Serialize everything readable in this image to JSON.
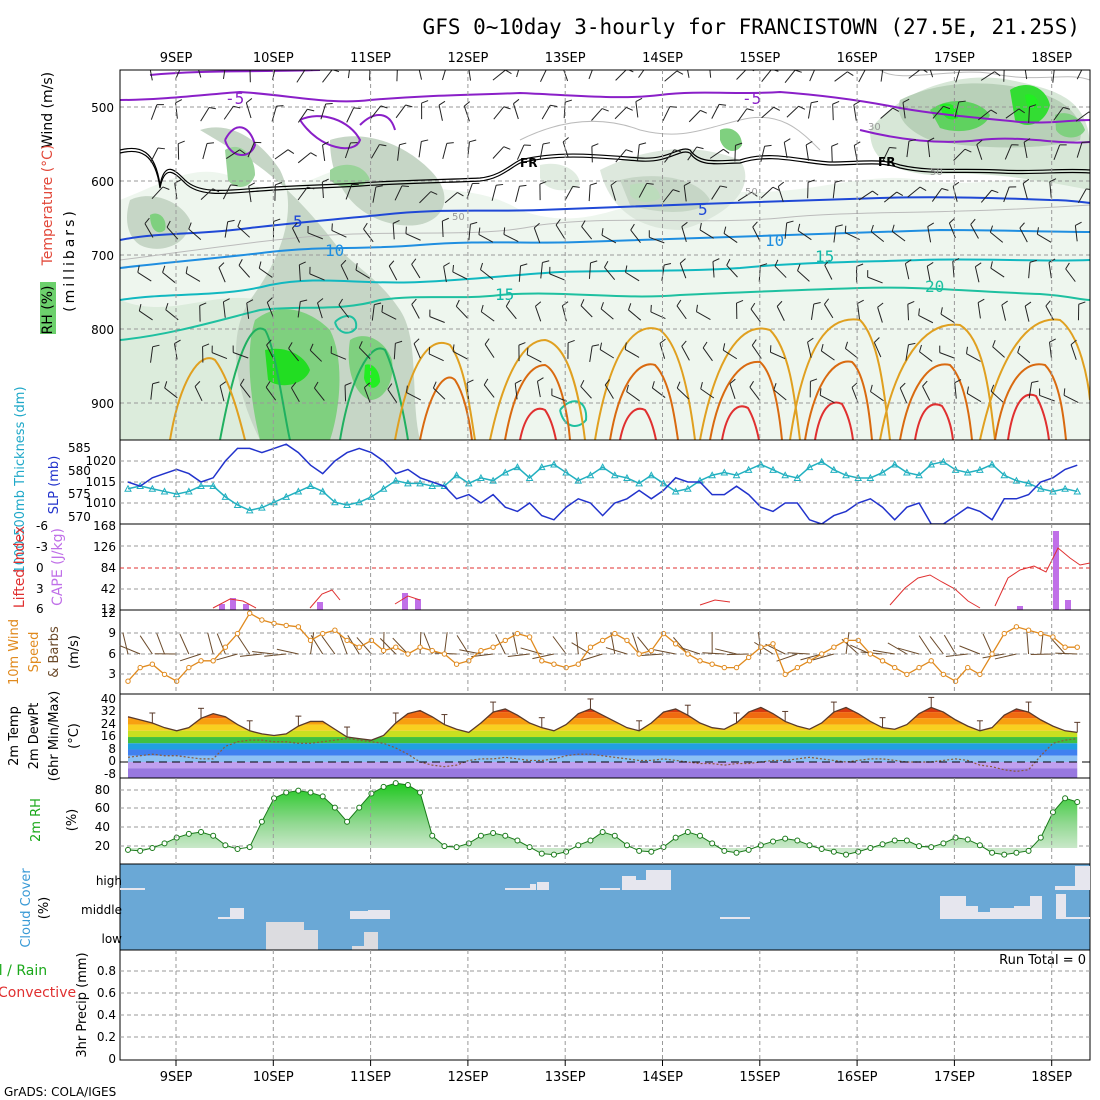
{
  "title": "GFS 0~10day 3-hourly for FRANCISTOWN (27.5E, 21.25S)",
  "credit": "GrADS: COLA/IGES",
  "dates": [
    "9SEP",
    "10SEP",
    "11SEP",
    "12SEP",
    "13SEP",
    "14SEP",
    "15SEP",
    "16SEP",
    "17SEP",
    "18SEP"
  ],
  "panels": {
    "upper": {
      "ylabel_pressure": "(millibars)",
      "ylabel_wind": "Wind (m/s)",
      "ylabel_temp": "Temperature (°C)",
      "ylabel_rh": "RH (%)",
      "pressure_ticks": [
        "500",
        "600",
        "700",
        "800",
        "900"
      ],
      "freezing_label": "FR",
      "contour_labels": [
        "-5",
        "-5",
        "5",
        "5",
        "10",
        "10",
        "15",
        "15",
        "20",
        "30",
        "50",
        "50",
        "50"
      ]
    },
    "pressure": {
      "ylabel_thick": "1000-500mb Thickness (dm)",
      "ylabel_slp": "SLP (mb)",
      "thick_ticks": [
        "585",
        "580",
        "575",
        "570"
      ],
      "slp_ticks": [
        "1020",
        "1015",
        "1010"
      ]
    },
    "cape": {
      "ylabel_li": "Lifted Index",
      "ylabel_cape": "CAPE (J/kg)",
      "li_ticks": [
        "-6",
        "-3",
        "0",
        "3",
        "6"
      ],
      "cape_ticks": [
        "168",
        "126",
        "84",
        "42",
        "12"
      ]
    },
    "wind10": {
      "ylabel_a": "10m Wind",
      "ylabel_b": "Speed",
      "ylabel_c": "& Barbs",
      "ylabel_d": "(m/s)",
      "ticks": [
        "12",
        "9",
        "6",
        "3"
      ]
    },
    "temp": {
      "ylabel_a": "2m Temp",
      "ylabel_b": "2m DewPt",
      "ylabel_c": "(6hr Min/Max)",
      "ylabel_d": "(°C)",
      "ticks": [
        "40",
        "32",
        "24",
        "16",
        "8",
        "0",
        "-8"
      ]
    },
    "rh": {
      "ylabel_a": "2m RH",
      "ylabel_b": "(%)",
      "ticks": [
        "80",
        "60",
        "40",
        "20"
      ]
    },
    "cloud": {
      "ylabel_a": "Cloud Cover",
      "ylabel_b": "(%)",
      "levels": [
        "high",
        "middle",
        "low"
      ]
    },
    "precip": {
      "ylabel_a": "Total / Rain",
      "ylabel_b": "Convective",
      "ylabel_c": "3hr Precip (mm)",
      "ticks": [
        "0.8",
        "0.6",
        "0.4",
        "0.2",
        "0"
      ],
      "run_total": "Run Total = 0"
    }
  },
  "chart_data": [
    {
      "type": "line",
      "name": "SLP and 1000-500mb thickness",
      "x_unit": "3-hourly steps (0 = 8SEP 12Z)",
      "ylabel": "SLP (mb)",
      "series": [
        {
          "name": "SLP",
          "color": "#2233cc",
          "values": [
            1015,
            1014,
            1016,
            1017,
            1018,
            1017,
            1015,
            1016,
            1020,
            1023,
            1023,
            1022,
            1023,
            1024,
            1022,
            1019,
            1017,
            1020,
            1022,
            1023,
            1022,
            1020,
            1017,
            1018,
            1016,
            1015,
            1014,
            1011,
            1012,
            1010,
            1012,
            1009,
            1008,
            1010,
            1007,
            1006,
            1009,
            1011,
            1010,
            1007,
            1010,
            1011,
            1013,
            1011,
            1013,
            1016,
            1015,
            1015,
            1012,
            1012,
            1014,
            1012,
            1009,
            1008,
            1010,
            1010,
            1006,
            1005,
            1007,
            1008,
            1010,
            1011,
            1009,
            1006,
            1009,
            1010,
            1005,
            1005,
            1007,
            1009,
            1008,
            1006,
            1011,
            1011,
            1012,
            1015,
            1016,
            1018,
            1019
          ]
        },
        {
          "name": "Thickness",
          "color": "#22b0c0",
          "values": [
            575,
            576,
            575,
            574,
            573,
            574,
            576,
            576,
            572,
            569,
            567,
            568,
            570,
            572,
            574,
            576,
            574,
            570,
            569,
            570,
            572,
            575,
            578,
            577,
            577,
            576,
            576,
            580,
            577,
            579,
            578,
            581,
            583,
            579,
            583,
            584,
            581,
            578,
            580,
            583,
            580,
            579,
            577,
            580,
            577,
            574,
            575,
            578,
            580,
            581,
            580,
            582,
            584,
            582,
            580,
            579,
            583,
            585,
            582,
            580,
            579,
            579,
            581,
            584,
            581,
            580,
            584,
            585,
            582,
            581,
            582,
            584,
            580,
            578,
            577,
            575,
            574,
            575,
            574
          ]
        }
      ]
    },
    {
      "type": "line",
      "name": "10m wind speed",
      "ylabel": "(m/s)",
      "series": [
        {
          "name": "Speed",
          "color": "#e08a1e",
          "values": [
            1,
            3,
            3.5,
            2,
            1,
            3,
            4,
            4,
            6,
            8,
            11,
            10,
            9.5,
            9.2,
            9,
            7,
            8,
            8.5,
            7,
            6,
            7,
            5.5,
            6,
            5,
            6,
            5.5,
            5,
            3.5,
            4,
            5.5,
            6,
            7,
            8,
            7.5,
            4,
            3.5,
            3,
            3.5,
            6,
            7,
            8,
            7,
            5,
            5.5,
            8,
            6.5,
            5,
            4,
            3.5,
            3,
            3,
            4.5,
            6,
            6.5,
            2,
            3,
            4,
            5,
            6,
            7,
            7,
            5,
            4,
            3,
            2,
            3,
            4,
            2,
            1,
            3,
            2,
            5,
            8,
            9,
            8.5,
            8,
            7.5,
            6,
            6
          ]
        }
      ]
    },
    {
      "type": "area",
      "name": "2m temperature / dewpoint",
      "ylabel": "(°C)",
      "ylim": [
        -12,
        42
      ],
      "series": [
        {
          "name": "2m Temp",
          "values": [
            29,
            27,
            25,
            22,
            20,
            22,
            28,
            31,
            29,
            24,
            20,
            18,
            17,
            18,
            23,
            26,
            26,
            21,
            16,
            15,
            14,
            17,
            25,
            31,
            33,
            29,
            24,
            21,
            19,
            25,
            32,
            34,
            30,
            25,
            22,
            20,
            24,
            31,
            34,
            30,
            26,
            22,
            20,
            25,
            32,
            34,
            30,
            25,
            22,
            21,
            25,
            32,
            35,
            31,
            26,
            23,
            21,
            25,
            32,
            35,
            31,
            26,
            22,
            21,
            24,
            31,
            35,
            32,
            27,
            23,
            20,
            22,
            30,
            34,
            32,
            27,
            23,
            20,
            19
          ]
        },
        {
          "name": "2m DewPt",
          "values": [
            3,
            4,
            5,
            4,
            4,
            3,
            2,
            2,
            10,
            13,
            14,
            14,
            13,
            13,
            12,
            12,
            13,
            14,
            15,
            14,
            13,
            12,
            9,
            5,
            0,
            -2,
            -3,
            -2,
            1,
            2,
            2,
            3,
            2,
            1,
            1,
            2,
            4,
            5,
            5,
            4,
            3,
            2,
            1,
            1,
            2,
            1,
            0,
            -1,
            -1,
            -2,
            -1,
            -1,
            0,
            1,
            1,
            2,
            3,
            2,
            1,
            0,
            1,
            2,
            2,
            1,
            0,
            0,
            0,
            1,
            2,
            1,
            -2,
            -3,
            -5,
            -6,
            -5,
            4,
            12,
            14,
            15
          ]
        }
      ]
    },
    {
      "type": "area",
      "name": "2m relative humidity",
      "ylabel": "(%)",
      "ylim": [
        0,
        90
      ],
      "series": [
        {
          "name": "2m RH",
          "values": [
            15,
            14,
            17,
            22,
            28,
            32,
            34,
            30,
            20,
            16,
            18,
            45,
            70,
            76,
            78,
            76,
            72,
            60,
            45,
            60,
            75,
            82,
            86,
            84,
            76,
            30,
            19,
            18,
            22,
            30,
            33,
            30,
            25,
            18,
            11,
            10,
            13,
            20,
            25,
            34,
            30,
            20,
            14,
            13,
            18,
            28,
            34,
            30,
            22,
            14,
            12,
            15,
            20,
            24,
            27,
            25,
            20,
            16,
            13,
            10,
            13,
            17,
            21,
            25,
            25,
            19,
            18,
            22,
            28,
            26,
            20,
            12,
            10,
            12,
            14,
            28,
            55,
            70,
            66
          ]
        }
      ]
    }
  ]
}
